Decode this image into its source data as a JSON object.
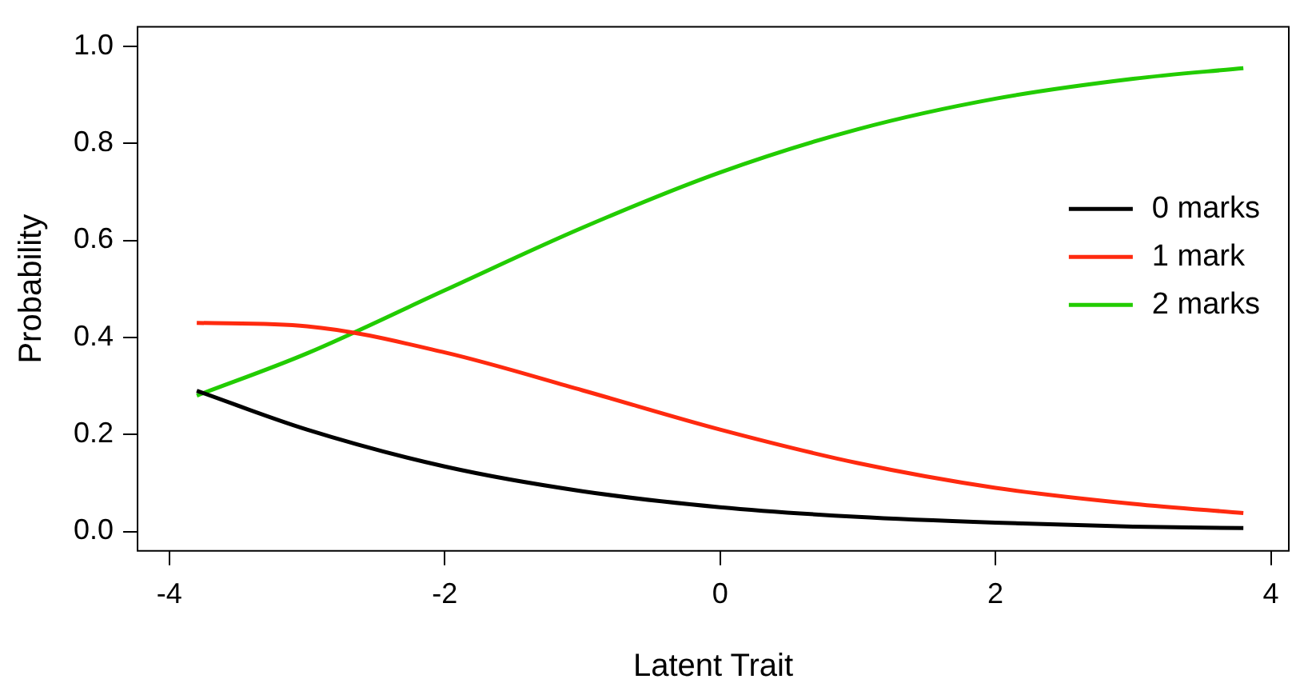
{
  "chart_data": {
    "type": "line",
    "xlabel": "Latent Trait",
    "ylabel": "Probability",
    "x": [
      -3.8,
      -3,
      -2,
      -1,
      0,
      1,
      2,
      3,
      3.8
    ],
    "series": [
      {
        "name": "0 marks",
        "color": "#000000",
        "values": [
          0.29,
          0.21,
          0.134,
          0.083,
          0.05,
          0.03,
          0.018,
          0.01,
          0.007
        ]
      },
      {
        "name": "1 mark",
        "color": "#ff2a0f",
        "values": [
          0.43,
          0.423,
          0.369,
          0.291,
          0.21,
          0.141,
          0.09,
          0.057,
          0.038
        ]
      },
      {
        "name": "2 marks",
        "color": "#22cc00",
        "values": [
          0.28,
          0.367,
          0.497,
          0.626,
          0.74,
          0.829,
          0.892,
          0.933,
          0.955
        ]
      }
    ],
    "xlim": [
      -4.23,
      4.13
    ],
    "ylim": [
      -0.04,
      1.04
    ],
    "xticks": [
      -4,
      -2,
      0,
      2,
      4
    ],
    "yticks": [
      {
        "value": 0,
        "label": "0.0"
      },
      0.2,
      0.4,
      0.6,
      0.8,
      {
        "value": 1,
        "label": "1.0"
      }
    ],
    "grid": false,
    "legend": "right",
    "marker": "none",
    "line_style": "solid"
  }
}
